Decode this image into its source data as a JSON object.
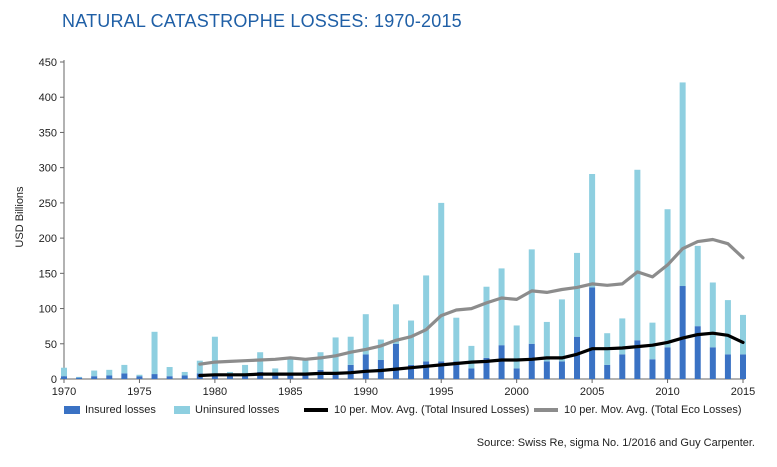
{
  "title": "NATURAL CATASTROPHE LOSSES: 1970-2015",
  "source": "Source: Swiss Re, sigma No. 1/2016 and Guy Carpenter.",
  "chart_data": {
    "type": "bar",
    "title": "NATURAL CATASTROPHE LOSSES: 1970-2015",
    "ylabel": "USD Billions",
    "xlabel": "",
    "ylim": [
      0,
      450
    ],
    "yticks": [
      0,
      50,
      100,
      150,
      200,
      250,
      300,
      350,
      400,
      450
    ],
    "xticks": [
      1970,
      1975,
      1980,
      1985,
      1990,
      1995,
      2000,
      2005,
      2010,
      2015
    ],
    "stacked": true,
    "grid": false,
    "legend_position": "bottom",
    "x": [
      1970,
      1971,
      1972,
      1973,
      1974,
      1975,
      1976,
      1977,
      1978,
      1979,
      1980,
      1981,
      1982,
      1983,
      1984,
      1985,
      1986,
      1987,
      1988,
      1989,
      1990,
      1991,
      1992,
      1993,
      1994,
      1995,
      1996,
      1997,
      1998,
      1999,
      2000,
      2001,
      2002,
      2003,
      2004,
      2005,
      2006,
      2007,
      2008,
      2009,
      2010,
      2011,
      2012,
      2013,
      2014,
      2015
    ],
    "series": [
      {
        "name": "Insured losses",
        "kind": "bar",
        "color": "#3a72c4",
        "values": [
          4,
          2,
          4,
          5,
          8,
          4,
          7,
          4,
          5,
          8,
          6,
          5,
          7,
          10,
          7,
          9,
          6,
          13,
          8,
          20,
          35,
          27,
          50,
          20,
          25,
          25,
          25,
          15,
          30,
          48,
          15,
          50,
          25,
          25,
          60,
          130,
          20,
          35,
          55,
          28,
          45,
          132,
          75,
          45,
          35,
          35
        ]
      },
      {
        "name": "Uninsured losses",
        "kind": "bar",
        "color": "#8ecfe0",
        "values": [
          12,
          1,
          8,
          8,
          12,
          2,
          60,
          13,
          5,
          18,
          54,
          5,
          13,
          28,
          8,
          22,
          21,
          25,
          51,
          40,
          57,
          29,
          56,
          63,
          122,
          225,
          62,
          32,
          101,
          109,
          61,
          134,
          56,
          88,
          119,
          161,
          45,
          51,
          242,
          52,
          196,
          289,
          114,
          92,
          77,
          56
        ]
      },
      {
        "name": "10 per. Mov. Avg. (Total Insured Losses)",
        "kind": "line",
        "color": "#000000",
        "values": [
          null,
          null,
          null,
          null,
          null,
          null,
          null,
          null,
          null,
          5,
          6,
          6,
          6,
          7,
          7,
          7,
          7,
          8,
          8,
          9,
          11,
          12,
          14,
          16,
          18,
          20,
          22,
          24,
          25,
          27,
          27,
          28,
          30,
          30,
          35,
          43,
          43,
          44,
          46,
          48,
          52,
          58,
          63,
          65,
          62,
          52
        ]
      },
      {
        "name": "10 per. Mov. Avg. (Total Eco Losses)",
        "kind": "line",
        "color": "#8c8c8c",
        "values": [
          null,
          null,
          null,
          null,
          null,
          null,
          null,
          null,
          null,
          21,
          24,
          25,
          26,
          27,
          28,
          30,
          28,
          30,
          33,
          38,
          42,
          47,
          55,
          60,
          70,
          90,
          98,
          100,
          108,
          115,
          113,
          125,
          123,
          127,
          130,
          135,
          133,
          135,
          152,
          145,
          162,
          185,
          195,
          198,
          192,
          172
        ]
      }
    ]
  },
  "legend": [
    {
      "label": "Insured losses",
      "color": "#3a72c4",
      "kind": "box"
    },
    {
      "label": "Uninsured losses",
      "color": "#8ecfe0",
      "kind": "box"
    },
    {
      "label": "10 per. Mov. Avg. (Total Insured Losses)",
      "color": "#000000",
      "kind": "line"
    },
    {
      "label": "10 per. Mov. Avg. (Total Eco Losses)",
      "color": "#8c8c8c",
      "kind": "line"
    }
  ]
}
